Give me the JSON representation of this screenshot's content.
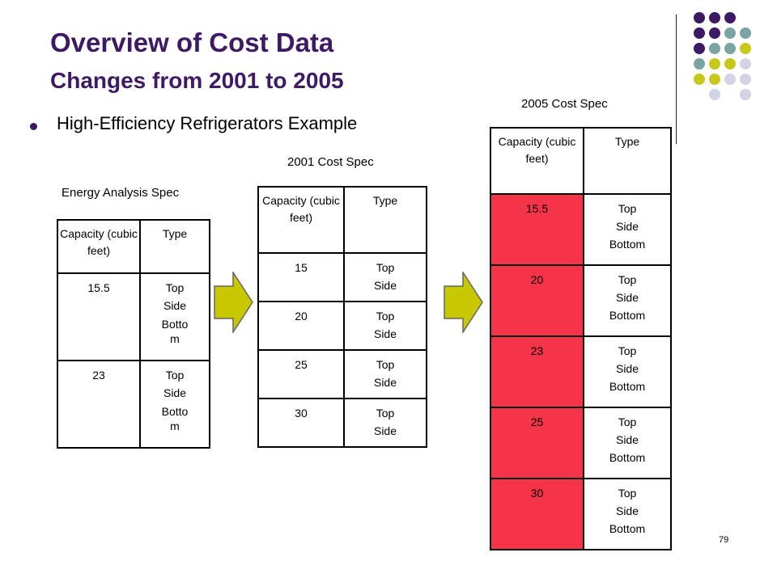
{
  "slide": {
    "title_line1": "Overview of Cost Data",
    "title_line2": "Changes from 2001 to 2005",
    "bullet": "High-Efficiency Refrigerators Example",
    "page_number": "79",
    "colors": {
      "title": "#3d1a63",
      "highlight": "#f5344a",
      "arrow": "#c8c800",
      "dot_purple": "#3d1a63",
      "dot_teal": "#7aa3a3",
      "dot_olive": "#c8c81a",
      "dot_lavender": "#d3d3e6"
    }
  },
  "energy_spec": {
    "label": "Energy Analysis Spec",
    "headers": [
      "Capacity (cubic feet)",
      "Type"
    ],
    "rows": [
      {
        "capacity": "15.5",
        "types": [
          "Top",
          "Side",
          "Botto m"
        ]
      },
      {
        "capacity": "23",
        "types": [
          "Top",
          "Side",
          "Botto m"
        ]
      }
    ]
  },
  "spec_2001": {
    "label": "2001 Cost Spec",
    "headers": [
      "Capacity (cubic feet)",
      "Type"
    ],
    "rows": [
      {
        "capacity": "15",
        "types": [
          "Top",
          "Side"
        ]
      },
      {
        "capacity": "20",
        "types": [
          "Top",
          "Side"
        ]
      },
      {
        "capacity": "25",
        "types": [
          "Top",
          "Side"
        ]
      },
      {
        "capacity": "30",
        "types": [
          "Top",
          "Side"
        ]
      }
    ]
  },
  "spec_2005": {
    "label": "2005 Cost Spec",
    "headers": [
      "Capacity (cubic feet)",
      "Type"
    ],
    "rows": [
      {
        "capacity": "15.5",
        "types": [
          "Top",
          "Side",
          "Bottom"
        ]
      },
      {
        "capacity": "20",
        "types": [
          "Top",
          "Side",
          "Bottom"
        ]
      },
      {
        "capacity": "23",
        "types": [
          "Top",
          "Side",
          "Bottom"
        ]
      },
      {
        "capacity": "25",
        "types": [
          "Top",
          "Side",
          "Bottom"
        ]
      },
      {
        "capacity": "30",
        "types": [
          "Top",
          "Side",
          "Bottom"
        ]
      }
    ]
  }
}
